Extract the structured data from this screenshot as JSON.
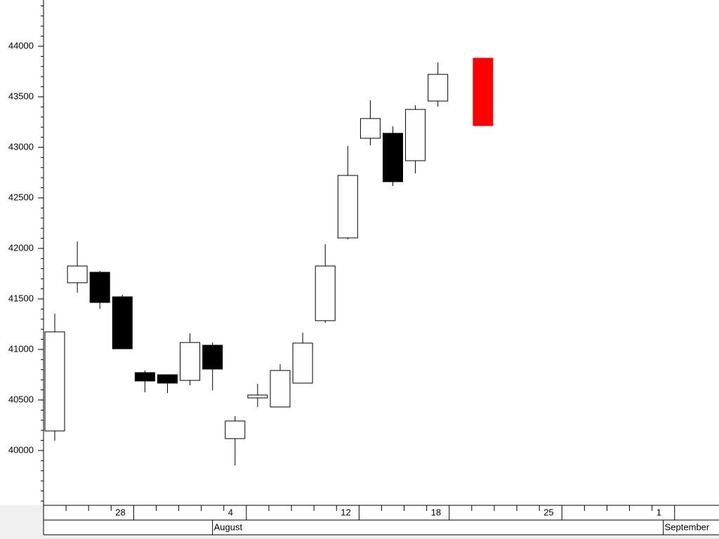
{
  "chart_data": {
    "type": "candlestick",
    "categories": [
      null,
      null,
      null,
      "28",
      null,
      null,
      null,
      null,
      "4",
      null,
      null,
      null,
      null,
      "12",
      null,
      null,
      null,
      "18",
      null,
      null,
      null,
      null,
      "25",
      null,
      null,
      null,
      null,
      "1"
    ],
    "open": [
      40194,
      41660,
      41764,
      41521,
      40771,
      40750,
      40694,
      41042,
      40118,
      40521,
      40431,
      40667,
      41285,
      42104,
      43090,
      43139,
      42868,
      43458,
      null,
      43882,
      null,
      null,
      null,
      null,
      null,
      null,
      null,
      null
    ],
    "high": [
      41354,
      42069,
      41778,
      41542,
      40792,
      40750,
      41160,
      41069,
      40340,
      40660,
      40854,
      41167,
      42042,
      43014,
      43465,
      43208,
      43417,
      43840,
      null,
      43882,
      null,
      null,
      null,
      null,
      null,
      null,
      null,
      null
    ],
    "low": [
      40097,
      41563,
      41403,
      41007,
      40576,
      40569,
      40646,
      40597,
      39854,
      40431,
      40431,
      40667,
      41264,
      42090,
      43021,
      42618,
      42743,
      43403,
      null,
      43215,
      null,
      null,
      null,
      null,
      null,
      null,
      null,
      null
    ],
    "close": [
      41174,
      41826,
      41465,
      41007,
      40688,
      40667,
      41069,
      40806,
      40292,
      40549,
      40792,
      41063,
      41826,
      42722,
      43285,
      42660,
      43375,
      43722,
      null,
      43215,
      null,
      null,
      null,
      null,
      null,
      null,
      null,
      null
    ],
    "month_labels": [
      "August",
      "September"
    ],
    "month_starts": [
      7,
      27
    ],
    "up_color": "#ffffff",
    "down_color": "#000000",
    "last_color": "#ff0000",
    "ylim": [
      39458,
      44458
    ],
    "yticks": [
      40000,
      40500,
      41000,
      41500,
      42000,
      42500,
      43000,
      43500,
      44000
    ]
  }
}
